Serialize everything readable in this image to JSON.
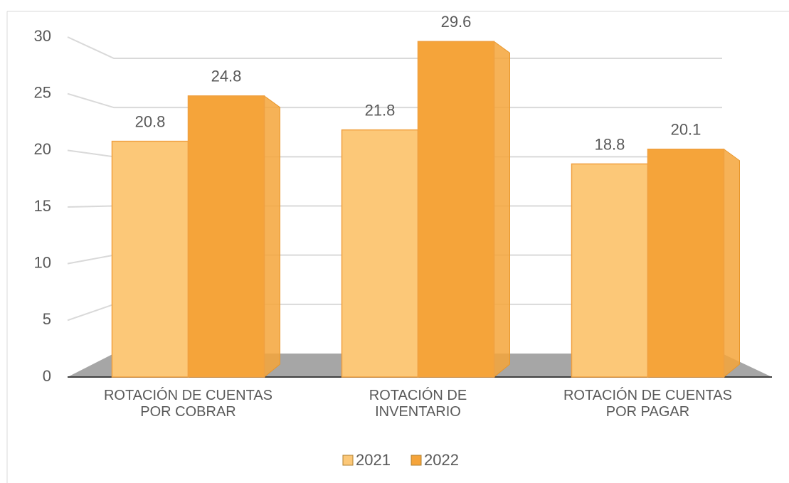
{
  "chart_data": {
    "type": "bar",
    "categories": [
      "ROTACIÓN DE CUENTAS POR COBRAR",
      "ROTACIÓN DE INVENTARIO",
      "ROTACIÓN DE CUENTAS POR PAGAR"
    ],
    "series": [
      {
        "name": "2021",
        "color": "#fcc878",
        "values": [
          20.8,
          21.8,
          18.8
        ]
      },
      {
        "name": "2022",
        "color": "#f5a43a",
        "values": [
          24.8,
          29.6,
          20.1
        ]
      }
    ],
    "ylim": [
      0,
      30
    ],
    "yticks": [
      0,
      5,
      10,
      15,
      20,
      25,
      30
    ],
    "grid": true,
    "legend": "bottom"
  }
}
